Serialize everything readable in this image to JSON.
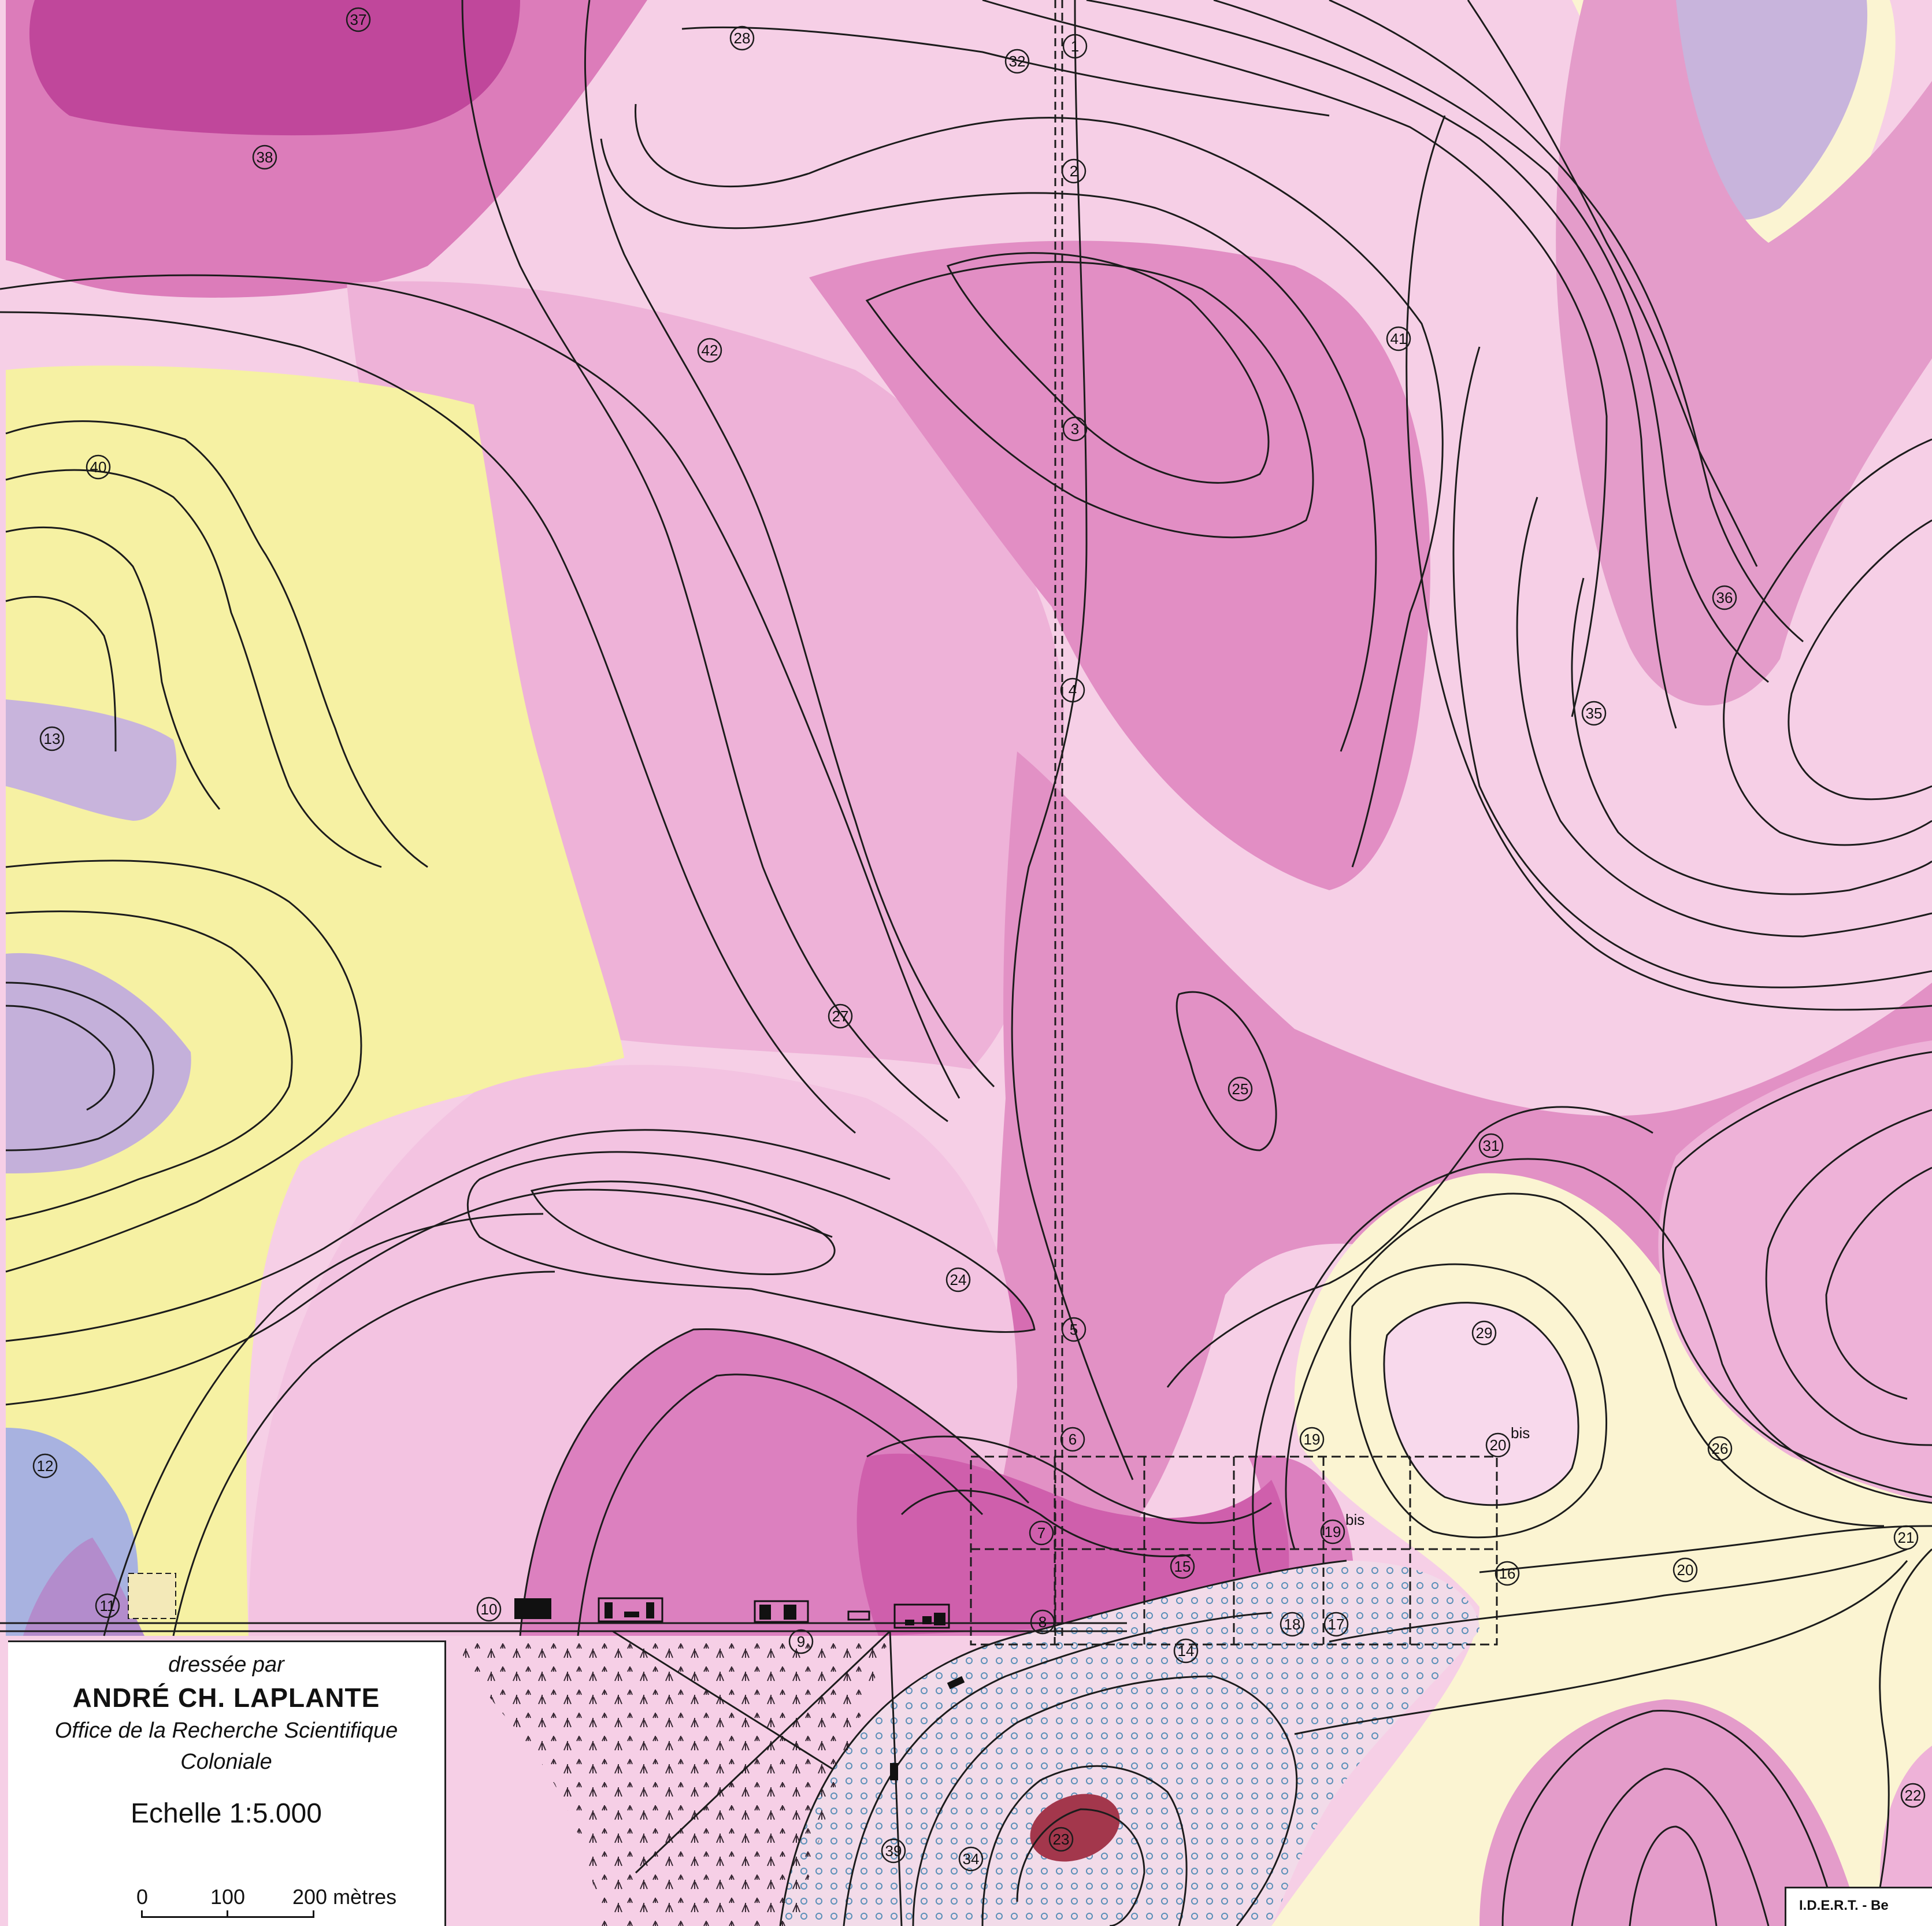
{
  "legend": {
    "by": "dressée par",
    "author": "ANDRÉ CH. LAPLANTE",
    "org_line1": "Office de la Recherche Scientifique",
    "org_line2": "Coloniale",
    "scale": "Echelle 1:5.000",
    "scale_ticks": [
      "0",
      "100",
      "200 mètres"
    ]
  },
  "credit": "I.D.E.R.T. - Be",
  "colors": {
    "light_pink": "#f6cfe6",
    "pink": "#eeb0d6",
    "magenta": "#dd7ab8",
    "dark_magenta": "#c0479b",
    "yellow": "#f6f2a6",
    "pale_yellow": "#fbf4d2",
    "lavender": "#c8b4dc",
    "blue": "#a8b2e0",
    "dark_red": "#a3374c",
    "contour": "#1c1c1c"
  },
  "labels": [
    "1",
    "2",
    "3",
    "4",
    "5",
    "6",
    "7",
    "8",
    "9",
    "10",
    "11",
    "12",
    "13",
    "14",
    "15",
    "16",
    "17",
    "18",
    "19",
    "19bis",
    "20",
    "20bis",
    "21",
    "22",
    "23",
    "24",
    "25",
    "26",
    "27",
    "28",
    "29",
    "31",
    "32",
    "34",
    "35",
    "36",
    "37",
    "38",
    "39",
    "40",
    "41",
    "42"
  ]
}
